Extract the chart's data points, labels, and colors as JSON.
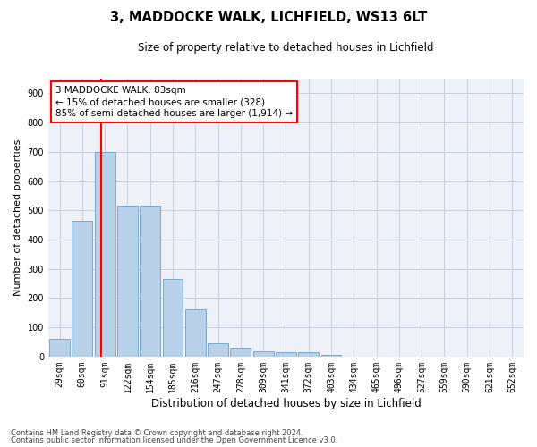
{
  "title1": "3, MADDOCKE WALK, LICHFIELD, WS13 6LT",
  "title2": "Size of property relative to detached houses in Lichfield",
  "xlabel": "Distribution of detached houses by size in Lichfield",
  "ylabel": "Number of detached properties",
  "categories": [
    "29sqm",
    "60sqm",
    "91sqm",
    "122sqm",
    "154sqm",
    "185sqm",
    "216sqm",
    "247sqm",
    "278sqm",
    "309sqm",
    "341sqm",
    "372sqm",
    "403sqm",
    "434sqm",
    "465sqm",
    "496sqm",
    "527sqm",
    "559sqm",
    "590sqm",
    "621sqm",
    "652sqm"
  ],
  "values": [
    60,
    465,
    700,
    515,
    515,
    265,
    160,
    45,
    30,
    17,
    14,
    14,
    7,
    0,
    0,
    0,
    0,
    0,
    0,
    0,
    0
  ],
  "bar_color": "#b8d0e8",
  "bar_edge_color": "#6fa0c8",
  "red_line_x": 1.85,
  "marker_label": "3 MADDOCKE WALK: 83sqm",
  "annotation_line1": "← 15% of detached houses are smaller (328)",
  "annotation_line2": "85% of semi-detached houses are larger (1,914) →",
  "ylim": [
    0,
    950
  ],
  "yticks": [
    0,
    100,
    200,
    300,
    400,
    500,
    600,
    700,
    800,
    900
  ],
  "footnote1": "Contains HM Land Registry data © Crown copyright and database right 2024.",
  "footnote2": "Contains public sector information licensed under the Open Government Licence v3.0.",
  "bg_color": "#eef2f8",
  "grid_color": "#c8d0de",
  "title1_fontsize": 10.5,
  "title2_fontsize": 8.5,
  "ylabel_fontsize": 8,
  "xlabel_fontsize": 8.5,
  "tick_fontsize": 7,
  "annot_fontsize": 7.5,
  "footnote_fontsize": 6
}
